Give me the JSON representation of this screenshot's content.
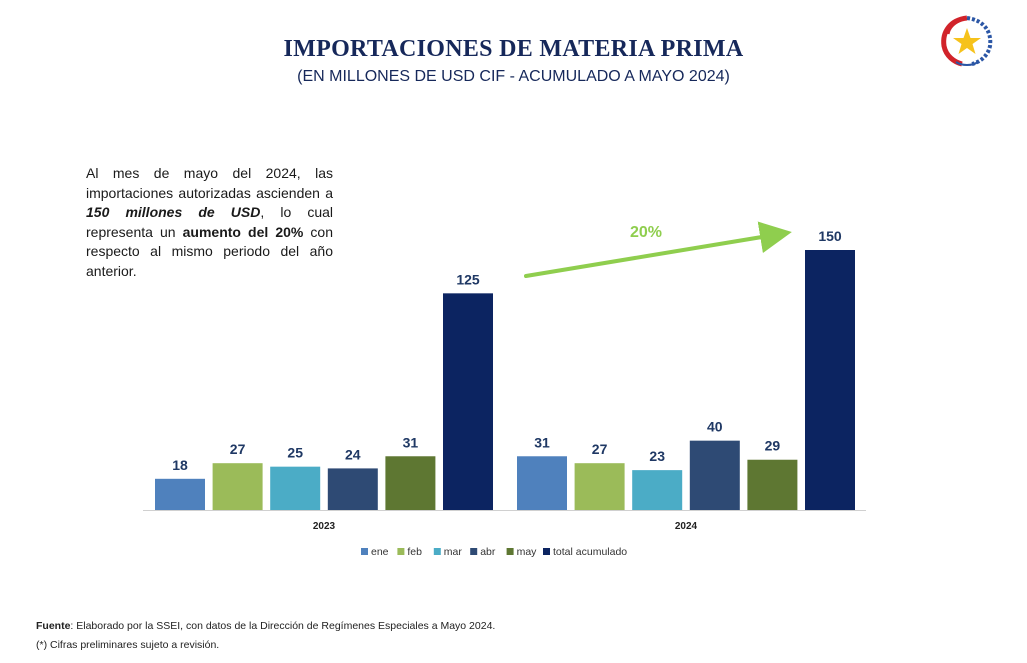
{
  "header": {
    "title": "IMPORTACIONES DE MATERIA PRIMA",
    "subtitle": "(EN MILLONES DE USD CIF - ACUMULADO A MAYO 2024)",
    "logo_icon": "paraguay-star-emblem-icon"
  },
  "description": {
    "part1": "Al mes de mayo del 2024, las importaciones autorizadas ascienden a ",
    "highlight1": "150 millones de USD",
    "part2": ", lo cual representa un ",
    "highlight2": "aumento del 20%",
    "part3": " con respecto al mismo periodo del año anterior."
  },
  "chart_data": {
    "type": "bar",
    "title": "",
    "groups": [
      "2023",
      "2024"
    ],
    "series": [
      {
        "name": "ene",
        "color": "#4f81bd",
        "values": [
          18,
          31
        ]
      },
      {
        "name": "feb",
        "color": "#9bbb59",
        "values": [
          27,
          27
        ]
      },
      {
        "name": "mar",
        "color": "#4bacc6",
        "values": [
          25,
          23
        ]
      },
      {
        "name": "abr",
        "color": "#2e4a74",
        "values": [
          24,
          40
        ]
      },
      {
        "name": "may",
        "color": "#5e7732",
        "values": [
          31,
          29
        ]
      },
      {
        "name": "total acumulado",
        "color": "#0c2461",
        "values": [
          125,
          150
        ]
      }
    ],
    "ylim": [
      0,
      150
    ],
    "grid": false,
    "legend_position": "bottom",
    "annotation": {
      "label": "20%",
      "color": "#8fce4e",
      "from": "2023 total acumulado",
      "to": "2024 total acumulado"
    }
  },
  "footer": {
    "source_label": "Fuente",
    "source_text": ": Elaborado por la SSEI, con datos de la Dirección de Regímenes Especiales a Mayo 2024.",
    "note": "(*) Cifras preliminares sujeto a revisión."
  }
}
